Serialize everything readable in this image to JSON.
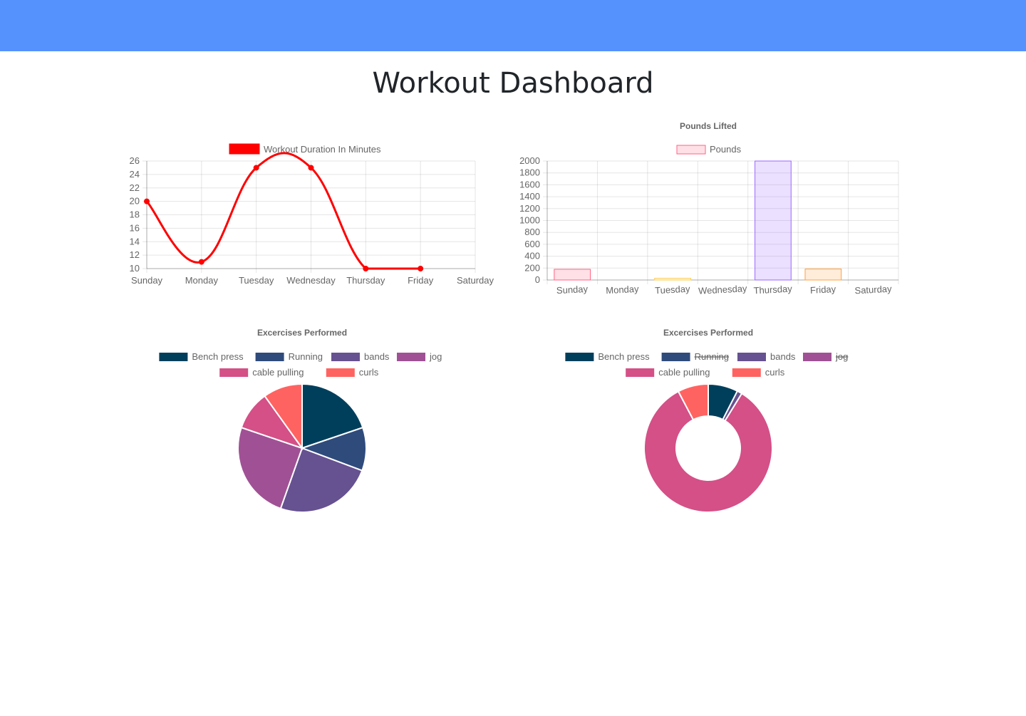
{
  "page": {
    "title": "Workout Dashboard"
  },
  "colors": {
    "topbar": "#5592fe"
  },
  "chart_data": [
    {
      "type": "line",
      "title": "",
      "categories": [
        "Sunday",
        "Monday",
        "Tuesday",
        "Wednesday",
        "Thursday",
        "Friday",
        "Saturday"
      ],
      "series": [
        {
          "name": "Workout Duration In Minutes",
          "values": [
            20,
            11,
            25,
            25,
            10,
            10,
            null
          ],
          "color": "#ff0000"
        }
      ],
      "ylim": [
        10,
        26
      ],
      "yticks": [
        10,
        12,
        14,
        16,
        18,
        20,
        22,
        24,
        26
      ],
      "legend": "top",
      "grid": true
    },
    {
      "type": "bar",
      "title": "Pounds Lifted",
      "categories": [
        "Sunday",
        "Monday",
        "Tuesday",
        "Wednesday",
        "Thursday",
        "Friday",
        "Saturday"
      ],
      "series": [
        {
          "name": "Pounds",
          "values": [
            180,
            0,
            30,
            0,
            2000,
            185,
            0
          ],
          "fills": [
            "rgba(255,99,132,0.2)",
            "rgba(54,162,235,0.2)",
            "rgba(255,206,86,0.2)",
            "rgba(75,192,192,0.2)",
            "rgba(153,102,255,0.2)",
            "rgba(255,159,64,0.2)",
            "rgba(255,99,132,0.2)"
          ],
          "strokes": [
            "rgba(255,99,132,1)",
            "rgba(54,162,235,1)",
            "rgba(255,206,86,1)",
            "rgba(75,192,192,1)",
            "rgba(153,102,255,1)",
            "rgba(255,159,64,1)",
            "rgba(255,99,132,1)"
          ]
        }
      ],
      "ylim": [
        0,
        2000
      ],
      "yticks": [
        0,
        200,
        400,
        600,
        800,
        1000,
        1200,
        1400,
        1600,
        1800,
        2000
      ],
      "legend": "top",
      "grid": true
    },
    {
      "type": "pie",
      "title": "Excercises Performed",
      "labels": [
        "Bench press",
        "Running",
        "bands",
        "jog",
        "cable pulling",
        "curls"
      ],
      "colors": [
        "#003f5c",
        "#2f4b7c",
        "#665191",
        "#a05195",
        "#d45087",
        "#ff6361"
      ],
      "values": [
        20,
        11,
        25,
        25,
        10,
        10
      ],
      "hidden": [
        false,
        false,
        false,
        false,
        false,
        false
      ],
      "legend": "top"
    },
    {
      "type": "doughnut",
      "title": "Excercises Performed",
      "labels": [
        "Bench press",
        "Running",
        "bands",
        "jog",
        "cable pulling",
        "curls"
      ],
      "colors": [
        "#003f5c",
        "#2f4b7c",
        "#665191",
        "#a05195",
        "#d45087",
        "#ff6361"
      ],
      "values": [
        180,
        0,
        30,
        0,
        2000,
        185
      ],
      "hidden": [
        false,
        true,
        false,
        true,
        false,
        false
      ],
      "legend": "top"
    }
  ]
}
